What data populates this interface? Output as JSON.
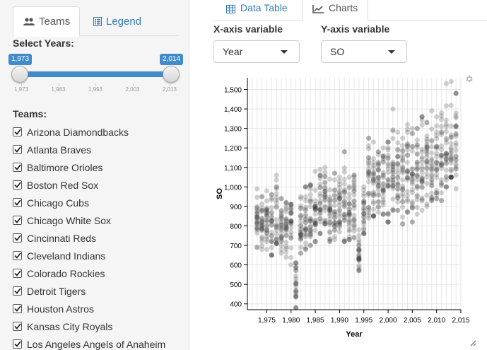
{
  "sidebar": {
    "tabs": {
      "teams": "Teams",
      "legend": "Legend"
    },
    "years_label": "Select Years:",
    "slider": {
      "min_label": "1,973",
      "max_label": "2,014",
      "ticks": [
        "1,973",
        "1,983",
        "1,993",
        "2,003",
        "2,013"
      ],
      "low": 1973,
      "high": 2014,
      "range": [
        1971,
        2015
      ]
    },
    "teams_label": "Teams:",
    "teams": [
      "Arizona Diamondbacks",
      "Atlanta Braves",
      "Baltimore Orioles",
      "Boston Red Sox",
      "Chicago Cubs",
      "Chicago White Sox",
      "Cincinnati Reds",
      "Cleveland Indians",
      "Colorado Rockies",
      "Detroit Tigers",
      "Houston Astros",
      "Kansas City Royals",
      "Los Angeles Angels of Anaheim"
    ]
  },
  "main": {
    "tabs": {
      "data_table": "Data Table",
      "charts": "Charts"
    },
    "x_label": "X-axis variable",
    "y_label": "Y-axis variable",
    "x_value": "Year",
    "y_value": "SO"
  },
  "chart_data": {
    "type": "scatter",
    "xlabel": "Year",
    "ylabel": "SO",
    "xlim": [
      1971,
      2015
    ],
    "ylim": [
      370,
      1560
    ],
    "xticks": [
      1975,
      1980,
      1985,
      1990,
      1995,
      2000,
      2005,
      2010,
      2015
    ],
    "xtick_labels": [
      "1,975",
      "1,980",
      "1,985",
      "1,990",
      "1,995",
      "2,000",
      "2,005",
      "2,010",
      "2,015"
    ],
    "yticks": [
      400,
      500,
      600,
      700,
      800,
      900,
      1000,
      1100,
      1200,
      1300,
      1400,
      1500
    ],
    "ytick_labels": [
      "400",
      "500",
      "600",
      "700",
      "800",
      "900",
      "1,000",
      "1,100",
      "1,200",
      "1,300",
      "1,400",
      "1,500"
    ],
    "grid": true,
    "point_color": "#333333",
    "year_stats": [
      {
        "x": 1973,
        "mean": 835,
        "min": 690,
        "max": 990
      },
      {
        "x": 1974,
        "mean": 800,
        "min": 680,
        "max": 950
      },
      {
        "x": 1975,
        "mean": 810,
        "min": 680,
        "max": 980
      },
      {
        "x": 1976,
        "mean": 790,
        "min": 650,
        "max": 960
      },
      {
        "x": 1977,
        "mean": 840,
        "min": 710,
        "max": 1060
      },
      {
        "x": 1978,
        "mean": 790,
        "min": 660,
        "max": 940
      },
      {
        "x": 1979,
        "mean": 810,
        "min": 640,
        "max": 920
      },
      {
        "x": 1980,
        "mean": 800,
        "min": 600,
        "max": 910
      },
      {
        "x": 1981,
        "mean": 490,
        "min": 380,
        "max": 610
      },
      {
        "x": 1982,
        "mean": 820,
        "min": 660,
        "max": 950
      },
      {
        "x": 1983,
        "mean": 830,
        "min": 680,
        "max": 1000
      },
      {
        "x": 1984,
        "mean": 850,
        "min": 700,
        "max": 1010
      },
      {
        "x": 1985,
        "mean": 840,
        "min": 720,
        "max": 1080
      },
      {
        "x": 1986,
        "mean": 920,
        "min": 760,
        "max": 1090
      },
      {
        "x": 1987,
        "mean": 940,
        "min": 810,
        "max": 1100
      },
      {
        "x": 1988,
        "mean": 860,
        "min": 720,
        "max": 1040
      },
      {
        "x": 1989,
        "mean": 880,
        "min": 730,
        "max": 1070
      },
      {
        "x": 1990,
        "mean": 890,
        "min": 770,
        "max": 1050
      },
      {
        "x": 1991,
        "mean": 900,
        "min": 720,
        "max": 1180
      },
      {
        "x": 1992,
        "mean": 880,
        "min": 730,
        "max": 1050
      },
      {
        "x": 1993,
        "mean": 910,
        "min": 740,
        "max": 1060
      },
      {
        "x": 1994,
        "mean": 650,
        "min": 570,
        "max": 780
      },
      {
        "x": 1995,
        "mean": 880,
        "min": 760,
        "max": 1000
      },
      {
        "x": 1996,
        "mean": 1010,
        "min": 840,
        "max": 1250
      },
      {
        "x": 1997,
        "mean": 1010,
        "min": 850,
        "max": 1230
      },
      {
        "x": 1998,
        "mean": 1050,
        "min": 870,
        "max": 1180
      },
      {
        "x": 1999,
        "mean": 1010,
        "min": 860,
        "max": 1200
      },
      {
        "x": 2000,
        "mean": 1030,
        "min": 820,
        "max": 1230
      },
      {
        "x": 2001,
        "mean": 1060,
        "min": 880,
        "max": 1400
      },
      {
        "x": 2002,
        "mean": 1030,
        "min": 880,
        "max": 1280
      },
      {
        "x": 2003,
        "mean": 1010,
        "min": 810,
        "max": 1250
      },
      {
        "x": 2004,
        "mean": 1050,
        "min": 870,
        "max": 1320
      },
      {
        "x": 2005,
        "mean": 1000,
        "min": 820,
        "max": 1300
      },
      {
        "x": 2006,
        "mean": 1070,
        "min": 860,
        "max": 1300
      },
      {
        "x": 2007,
        "mean": 1090,
        "min": 880,
        "max": 1360
      },
      {
        "x": 2008,
        "mean": 1100,
        "min": 900,
        "max": 1330
      },
      {
        "x": 2009,
        "mean": 1130,
        "min": 930,
        "max": 1390
      },
      {
        "x": 2010,
        "mean": 1120,
        "min": 940,
        "max": 1360
      },
      {
        "x": 2011,
        "mean": 1120,
        "min": 930,
        "max": 1380
      },
      {
        "x": 2012,
        "mean": 1190,
        "min": 1000,
        "max": 1530
      },
      {
        "x": 2013,
        "mean": 1180,
        "min": 1050,
        "max": 1540
      },
      {
        "x": 2014,
        "mean": 1230,
        "min": 990,
        "max": 1480
      }
    ],
    "points_per_year": 26
  }
}
